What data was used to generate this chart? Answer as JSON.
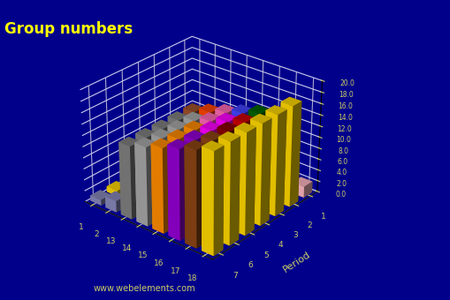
{
  "title": "Group numbers",
  "ylabel": "Period",
  "background_color": "#00008B",
  "title_color": "#FFFF00",
  "tick_color": "#CCCC66",
  "website": "www.webelements.com",
  "groups": [
    1,
    2,
    13,
    14,
    15,
    16,
    17,
    18
  ],
  "periods": [
    1,
    2,
    3,
    4,
    5,
    6,
    7
  ],
  "zlim": [
    0,
    20
  ],
  "zticks": [
    0.0,
    2.0,
    4.0,
    6.0,
    8.0,
    10.0,
    12.0,
    14.0,
    16.0,
    18.0,
    20.0
  ],
  "group_values": {
    "1": [
      1,
      1,
      1,
      1,
      1,
      1,
      1
    ],
    "2": [
      0,
      2,
      2,
      2,
      2,
      2,
      2
    ],
    "13": [
      0,
      0,
      13,
      13,
      13,
      13,
      13
    ],
    "14": [
      0,
      0,
      14,
      14,
      14,
      14,
      14
    ],
    "15": [
      0,
      0,
      15,
      15,
      15,
      15,
      15
    ],
    "16": [
      0,
      0,
      16,
      16,
      16,
      16,
      16
    ],
    "17": [
      0,
      0,
      17,
      17,
      17,
      17,
      17
    ],
    "18": [
      2,
      18,
      18,
      18,
      18,
      18,
      18
    ]
  },
  "bar_colors": {
    "1": [
      "#FFD700",
      "#FFD700",
      "#FFD700",
      "#FFD700",
      "#FFD700",
      "#FFD700",
      "#8888BB"
    ],
    "2": [
      "#000000",
      "#FFD700",
      "#FFD700",
      "#FFD700",
      "#FFD700",
      "#FFD700",
      "#8888BB"
    ],
    "13": [
      "#000000",
      "#000000",
      "#A0522D",
      "#808080",
      "#808080",
      "#808080",
      "#808080"
    ],
    "14": [
      "#000000",
      "#000000",
      "#FF4500",
      "#A8A8A8",
      "#A8A8A8",
      "#A8A8A8",
      "#A8A8A8"
    ],
    "15": [
      "#000000",
      "#000000",
      "#FF69B4",
      "#FF69B4",
      "#FF8C00",
      "#FF8C00",
      "#FF8C00"
    ],
    "16": [
      "#000000",
      "#000000",
      "#4444FF",
      "#FF00FF",
      "#FF00FF",
      "#9400D3",
      "#9400D3"
    ],
    "17": [
      "#000000",
      "#000000",
      "#006400",
      "#CC0000",
      "#8B0000",
      "#8B4513",
      "#8B4513"
    ],
    "18": [
      "#FFB6C1",
      "#FFD700",
      "#FFD700",
      "#FFD700",
      "#FFD700",
      "#FFD700",
      "#FFD700"
    ]
  },
  "elev": 28,
  "azim": -50,
  "bar_width": 0.7,
  "bar_depth": 0.6
}
